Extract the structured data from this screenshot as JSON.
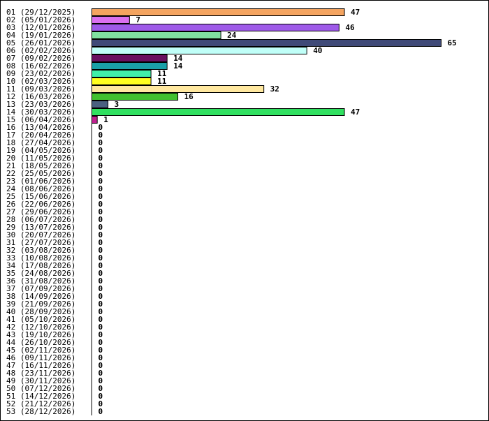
{
  "chart_data": {
    "type": "bar",
    "orientation": "horizontal",
    "title": "",
    "xlabel": "",
    "ylabel": "",
    "xlim": [
      0,
      65
    ],
    "grid": false,
    "categories": [
      "01 (29/12/2025)",
      "02 (05/01/2026)",
      "03 (12/01/2026)",
      "04 (19/01/2026)",
      "05 (26/01/2026)",
      "06 (02/02/2026)",
      "07 (09/02/2026)",
      "08 (16/02/2026)",
      "09 (23/02/2026)",
      "10 (02/03/2026)",
      "11 (09/03/2026)",
      "12 (16/03/2026)",
      "13 (23/03/2026)",
      "14 (30/03/2026)",
      "15 (06/04/2026)",
      "16 (13/04/2026)",
      "17 (20/04/2026)",
      "18 (27/04/2026)",
      "19 (04/05/2026)",
      "20 (11/05/2026)",
      "21 (18/05/2026)",
      "22 (25/05/2026)",
      "23 (01/06/2026)",
      "24 (08/06/2026)",
      "25 (15/06/2026)",
      "26 (22/06/2026)",
      "27 (29/06/2026)",
      "28 (06/07/2026)",
      "29 (13/07/2026)",
      "30 (20/07/2026)",
      "31 (27/07/2026)",
      "32 (03/08/2026)",
      "33 (10/08/2026)",
      "34 (17/08/2026)",
      "35 (24/08/2026)",
      "36 (31/08/2026)",
      "37 (07/09/2026)",
      "38 (14/09/2026)",
      "39 (21/09/2026)",
      "40 (28/09/2026)",
      "41 (05/10/2026)",
      "42 (12/10/2026)",
      "43 (19/10/2026)",
      "44 (26/10/2026)",
      "45 (02/11/2026)",
      "46 (09/11/2026)",
      "47 (16/11/2026)",
      "48 (23/11/2026)",
      "49 (30/11/2026)",
      "50 (07/12/2026)",
      "51 (14/12/2026)",
      "52 (21/12/2026)",
      "53 (28/12/2026)"
    ],
    "values": [
      47,
      7,
      46,
      24,
      65,
      40,
      14,
      14,
      11,
      11,
      32,
      16,
      3,
      47,
      1,
      0,
      0,
      0,
      0,
      0,
      0,
      0,
      0,
      0,
      0,
      0,
      0,
      0,
      0,
      0,
      0,
      0,
      0,
      0,
      0,
      0,
      0,
      0,
      0,
      0,
      0,
      0,
      0,
      0,
      0,
      0,
      0,
      0,
      0,
      0,
      0,
      0,
      0
    ],
    "colors": [
      "#f4a460",
      "#da70f0",
      "#9e5ae8",
      "#80e0a0",
      "#404a78",
      "#c0fff8",
      "#6a1060",
      "#1aa0a8",
      "#40f0a8",
      "#ffff20",
      "#ffe8a0",
      "#40c030",
      "#4a6080",
      "#30e060",
      "#c02090"
    ]
  }
}
